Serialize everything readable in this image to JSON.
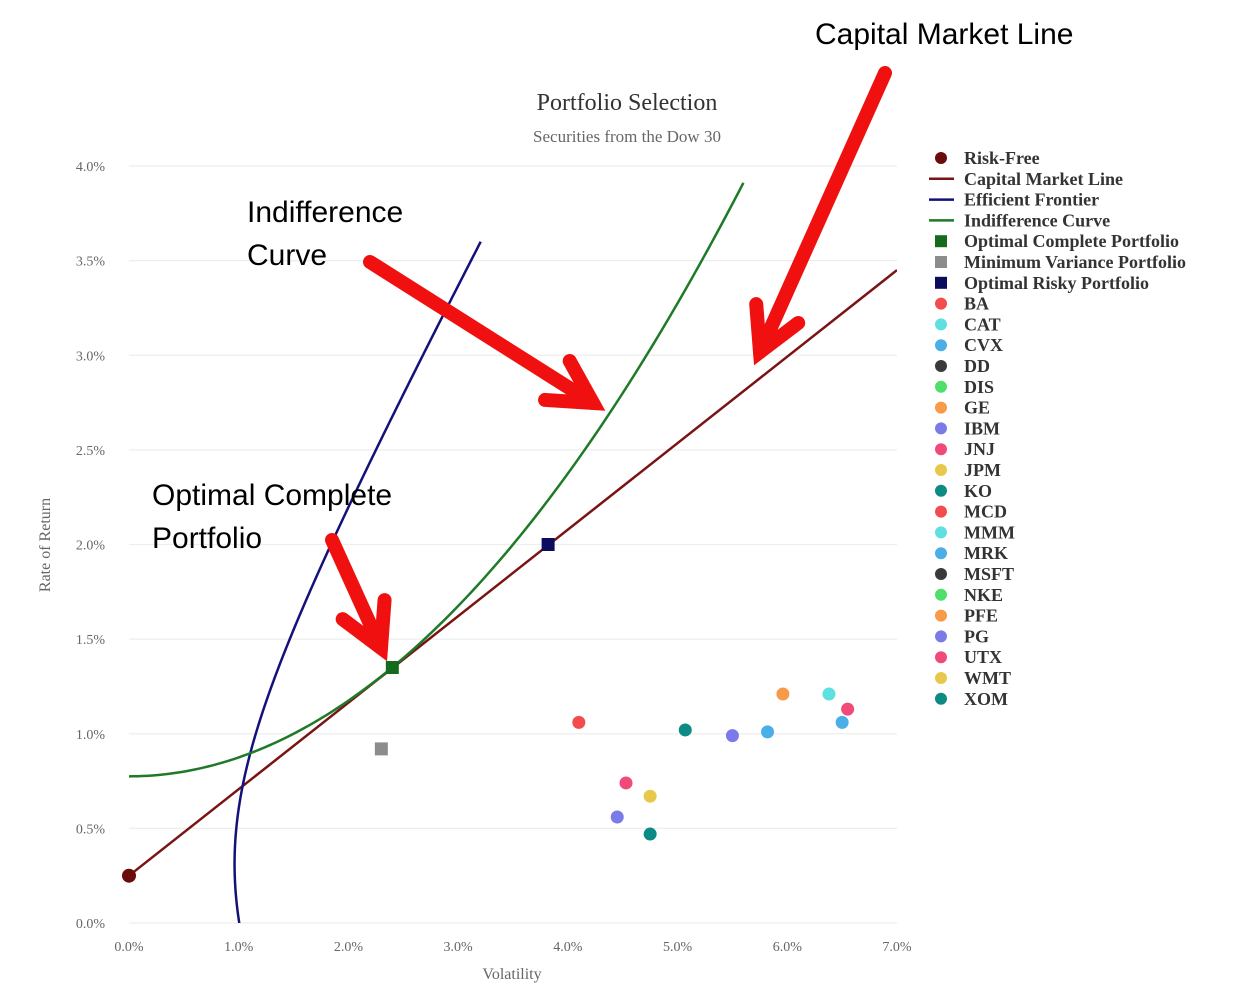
{
  "chart_data": {
    "type": "scatter",
    "title": "Portfolio Selection",
    "subtitle": "Securities from the Dow 30",
    "xlabel": "Volatility",
    "ylabel": "Rate of Return",
    "xlim": [
      0,
      7
    ],
    "ylim": [
      0,
      4
    ],
    "x_ticks": [
      "0.0%",
      "1.0%",
      "2.0%",
      "3.0%",
      "4.0%",
      "5.0%",
      "6.0%",
      "7.0%"
    ],
    "y_ticks": [
      "0.0%",
      "0.5%",
      "1.0%",
      "1.5%",
      "2.0%",
      "2.5%",
      "3.0%",
      "3.5%",
      "4.0%"
    ],
    "grid": "horizontal",
    "legend_position": "right",
    "colors": {
      "risk_free": "#6b0c0c",
      "cml": "#7a1414",
      "frontier": "#12127a",
      "indifference": "#1e7a28",
      "optimal_complete": "#146b1e",
      "min_variance": "#8c8c8c",
      "optimal_risky": "#0c0c5e",
      "annotation_arrow": "#f01010",
      "grid": "#eeeeee",
      "axis_text": "#666666",
      "title_text": "#333333"
    },
    "risk_free": {
      "name": "Risk-Free",
      "x": 0.0,
      "y": 0.25
    },
    "capital_market_line": {
      "name": "Capital Market Line",
      "from": [
        0.0,
        0.25
      ],
      "to": [
        7.0,
        3.45
      ]
    },
    "efficient_frontier": {
      "name": "Efficient Frontier",
      "a": 0.865,
      "b": 0.54,
      "c": 1.01
    },
    "indifference_curve": {
      "name": "Indifference Curve",
      "intercept": 0.775,
      "coef": 0.1
    },
    "optimal_complete_portfolio": {
      "name": "Optimal Complete Portfolio",
      "x": 2.4,
      "y": 1.35
    },
    "minimum_variance_portfolio": {
      "name": "Minimum Variance Portfolio",
      "x": 2.3,
      "y": 0.92
    },
    "optimal_risky_portfolio": {
      "name": "Optimal Risky Portfolio",
      "x": 3.82,
      "y": 2.0
    },
    "securities": [
      {
        "name": "BA",
        "x": 4.1,
        "y": 1.06,
        "color": "#f24c4c"
      },
      {
        "name": "CAT",
        "x": 6.38,
        "y": 1.21,
        "color": "#5ee0e0"
      },
      {
        "name": "CVX",
        "x": 6.5,
        "y": 1.06,
        "color": "#4aaee8"
      },
      {
        "name": "DD",
        "color": "#3a3a3a"
      },
      {
        "name": "DIS",
        "color": "#4ee06a"
      },
      {
        "name": "GE",
        "x": 5.96,
        "y": 1.21,
        "color": "#f79a4a"
      },
      {
        "name": "IBM",
        "x": 5.5,
        "y": 0.99,
        "color": "#7a7ae8"
      },
      {
        "name": "JNJ",
        "x": 4.53,
        "y": 0.74,
        "color": "#f04a7a"
      },
      {
        "name": "JPM",
        "x": 4.75,
        "y": 0.67,
        "color": "#e8c84a"
      },
      {
        "name": "KO",
        "x": 5.07,
        "y": 1.02,
        "color": "#0e8a84"
      },
      {
        "name": "MCD",
        "color": "#f24c4c"
      },
      {
        "name": "MMM",
        "color": "#5ee0e0"
      },
      {
        "name": "MRK",
        "x": 5.82,
        "y": 1.01,
        "color": "#4aaee8"
      },
      {
        "name": "MSFT",
        "color": "#3a3a3a"
      },
      {
        "name": "NKE",
        "color": "#4ee06a"
      },
      {
        "name": "PFE",
        "color": "#f79a4a"
      },
      {
        "name": "PG",
        "x": 4.45,
        "y": 0.56,
        "color": "#7a7ae8"
      },
      {
        "name": "UTX",
        "x": 6.55,
        "y": 1.13,
        "color": "#f04a7a"
      },
      {
        "name": "WMT",
        "color": "#e8c84a"
      },
      {
        "name": "XOM",
        "x": 4.75,
        "y": 0.47,
        "color": "#0e8a84"
      }
    ],
    "annotations": [
      {
        "text": "Capital Market Line"
      },
      {
        "text": [
          "Indifference",
          "Curve"
        ]
      },
      {
        "text": [
          "Optimal Complete",
          "Portfolio"
        ]
      }
    ]
  }
}
